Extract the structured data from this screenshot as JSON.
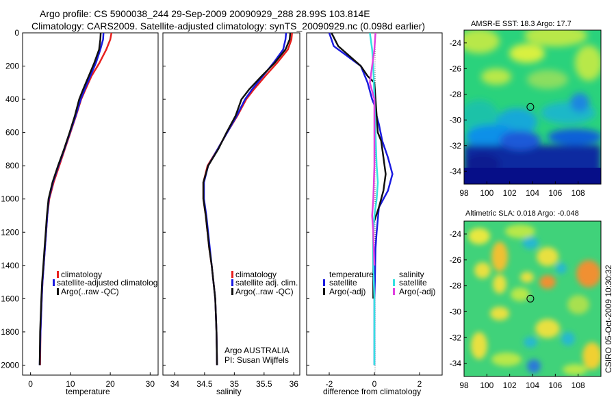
{
  "title": {
    "line1": "Argo profile: CS 5900038_244 29-Sep-2009 20090929_288 28.99S 103.814E",
    "line2": "Climatology: CARS2009. Satellite-adjusted climatology: synTS_20090929.nc (0.098d earlier)"
  },
  "panels": {
    "temperature": {
      "xlabel": "temperature",
      "legend": [
        "climatology",
        "satellite-adjusted climatology",
        "Argo(..raw -QC)"
      ]
    },
    "salinity": {
      "xlabel": "salinity",
      "legend": [
        "climatology",
        "satellite adj. clim.",
        "Argo(..raw -QC)"
      ],
      "note1": "Argo AUSTRALIA",
      "note2": "PI: Susan Wijffels"
    },
    "difference": {
      "xlabel": "difference from climatology",
      "temp_header": "temperature",
      "sal_header": "salinity",
      "temp_items": [
        "satellite",
        "Argo(-adj)"
      ],
      "sal_items": [
        "satellite",
        "Argo(-adj)"
      ]
    },
    "sst_map": {
      "title": "AMSR-E SST: 18.3 Argo: 17.7"
    },
    "sla_map": {
      "title": "Altimetric SLA: 0.018 Argo: -0.048"
    }
  },
  "side_label": "CSIRO 05-Oct-2009 10:30:32",
  "colors": {
    "climatology": "#e8201e",
    "satellite": "#1a1ae0",
    "argo": "#111111",
    "sal_sat": "#34e0e0",
    "sal_argo": "#e040e0"
  },
  "chart_data": [
    {
      "type": "line",
      "name": "temperature profile",
      "xlabel": "temperature",
      "ylabel": "",
      "xlim": [
        -2,
        32
      ],
      "ylim": [
        2060,
        0
      ],
      "y_inverted": true,
      "xticks": [
        0,
        10,
        20,
        30
      ],
      "yticks": [
        0,
        200,
        400,
        600,
        800,
        1000,
        1200,
        1400,
        1600,
        1800,
        2000
      ],
      "series": [
        {
          "name": "climatology",
          "color": "#e8201e",
          "x": [
            20.3,
            20.0,
            19.0,
            17.3,
            15.3,
            13.8,
            12.7,
            11.4,
            10.0,
            8.6,
            7.2,
            5.8,
            4.7,
            4.2,
            3.9,
            3.6,
            3.3,
            3.0,
            2.8,
            2.5,
            2.4
          ],
          "y": [
            0,
            40,
            100,
            180,
            260,
            340,
            400,
            500,
            600,
            700,
            800,
            900,
            1000,
            1100,
            1200,
            1300,
            1400,
            1500,
            1600,
            1800,
            2000
          ]
        },
        {
          "name": "satellite-adjusted climatology",
          "color": "#1a1ae0",
          "x": [
            18.3,
            18.2,
            17.5,
            16.4,
            15.0,
            13.6,
            12.6,
            11.3,
            9.9,
            8.5,
            7.0,
            5.6,
            4.6,
            4.2,
            3.9,
            3.6,
            3.3,
            3.0,
            2.8,
            2.5,
            2.3
          ],
          "y": [
            0,
            40,
            100,
            180,
            260,
            340,
            400,
            500,
            600,
            700,
            800,
            900,
            1000,
            1100,
            1200,
            1300,
            1400,
            1500,
            1600,
            1800,
            2000
          ]
        },
        {
          "name": "Argo(..raw -QC)",
          "color": "#111111",
          "x": [
            17.6,
            17.5,
            17.2,
            16.0,
            14.6,
            13.2,
            12.2,
            11.1,
            9.8,
            8.4,
            6.9,
            5.5,
            4.5,
            4.1,
            3.8,
            3.5,
            3.2,
            2.9,
            2.7,
            2.4,
            2.3
          ],
          "y": [
            0,
            40,
            100,
            180,
            260,
            340,
            400,
            500,
            600,
            700,
            800,
            900,
            1000,
            1100,
            1200,
            1300,
            1400,
            1500,
            1600,
            1800,
            2000
          ]
        }
      ]
    },
    {
      "type": "line",
      "name": "salinity profile",
      "xlabel": "salinity",
      "ylabel": "",
      "xlim": [
        33.8,
        36.1
      ],
      "ylim": [
        2060,
        0
      ],
      "y_inverted": true,
      "xticks": [
        34,
        34.5,
        35,
        35.5,
        36
      ],
      "series": [
        {
          "name": "climatology",
          "color": "#e8201e",
          "x": [
            35.97,
            35.96,
            35.9,
            35.72,
            35.52,
            35.33,
            35.2,
            35.05,
            34.88,
            34.72,
            34.55,
            34.48,
            34.48,
            34.52,
            34.55,
            34.58,
            34.62,
            34.65,
            34.68,
            34.7,
            34.71
          ],
          "y": [
            0,
            40,
            100,
            180,
            260,
            340,
            400,
            500,
            600,
            700,
            800,
            900,
            1000,
            1100,
            1200,
            1300,
            1400,
            1500,
            1600,
            1800,
            2000
          ]
        },
        {
          "name": "satellite adj. clim.",
          "color": "#1a1ae0",
          "x": [
            35.87,
            35.86,
            35.82,
            35.66,
            35.48,
            35.3,
            35.18,
            35.04,
            34.88,
            34.72,
            34.56,
            34.49,
            34.49,
            34.53,
            34.56,
            34.59,
            34.62,
            34.65,
            34.68,
            34.7,
            34.71
          ],
          "y": [
            0,
            40,
            100,
            180,
            260,
            340,
            400,
            500,
            600,
            700,
            800,
            900,
            1000,
            1100,
            1200,
            1300,
            1400,
            1500,
            1600,
            1800,
            2000
          ]
        },
        {
          "name": "Argo(..raw -QC)",
          "color": "#111111",
          "x": [
            35.94,
            35.93,
            35.86,
            35.68,
            35.46,
            35.25,
            35.12,
            35.02,
            34.87,
            34.73,
            34.56,
            34.48,
            34.48,
            34.52,
            34.55,
            34.58,
            34.62,
            34.65,
            34.68,
            34.7,
            34.71
          ],
          "y": [
            0,
            40,
            100,
            180,
            260,
            340,
            400,
            500,
            600,
            700,
            800,
            900,
            1000,
            1100,
            1200,
            1300,
            1400,
            1500,
            1600,
            1800,
            2000
          ]
        }
      ]
    },
    {
      "type": "line",
      "name": "difference from climatology",
      "xlabel": "difference from climatology",
      "ylabel": "",
      "xlim": [
        -3,
        3
      ],
      "ylim": [
        2060,
        0
      ],
      "y_inverted": true,
      "xticks": [
        -2,
        0,
        2
      ],
      "series": [
        {
          "name": "temperature satellite",
          "color": "#1a1ae0",
          "x": [
            -2.0,
            -1.8,
            -0.6,
            -0.3,
            -0.1,
            0.05,
            0.1,
            0.2,
            0.35,
            0.6,
            0.8,
            0.6,
            0.2,
            0.1,
            0.05,
            0.02,
            0.0,
            0.0,
            0.0,
            0.0
          ],
          "y": [
            0,
            80,
            200,
            300,
            400,
            450,
            500,
            550,
            650,
            750,
            850,
            950,
            1050,
            1200,
            1300,
            1500,
            1600,
            1700,
            1800,
            2000
          ]
        },
        {
          "name": "temperature Argo(-adj)",
          "color": "#111111",
          "x": [
            -1.9,
            -1.6,
            -0.6,
            -0.3,
            0.0,
            0.15,
            0.3,
            0.4,
            0.5,
            0.4,
            0.2,
            -0.05,
            -0.05,
            -0.05,
            -0.05
          ],
          "y": [
            0,
            80,
            200,
            260,
            300,
            600,
            650,
            750,
            850,
            950,
            1050,
            1150,
            1300,
            1500,
            1600
          ]
        },
        {
          "name": "salinity satellite",
          "color": "#34e0e0",
          "x": [
            -0.2,
            -0.1,
            -0.05,
            0.0,
            0.05,
            0.1,
            0.15,
            0.1,
            0.0,
            -0.05,
            -0.05,
            0.0,
            0.0,
            0.0
          ],
          "y": [
            0,
            100,
            200,
            400,
            600,
            800,
            900,
            1000,
            1100,
            1200,
            1400,
            1600,
            1800,
            2000
          ]
        },
        {
          "name": "salinity Argo(-adj)",
          "color": "#e040e0",
          "x": [
            0.05,
            0.0,
            -0.1,
            -0.2,
            -0.1,
            0.0,
            0.0,
            -0.05,
            -0.1,
            -0.05,
            0.0
          ],
          "y": [
            0,
            100,
            200,
            300,
            350,
            400,
            800,
            1000,
            1100,
            1200,
            1400
          ]
        }
      ]
    },
    {
      "type": "heatmap",
      "name": "AMSR-E SST map",
      "title": "AMSR-E SST: 18.3 Argo: 17.7",
      "xlim": [
        98,
        110
      ],
      "ylim": [
        -35,
        -23
      ],
      "xticks": [
        98,
        100,
        102,
        104,
        106,
        108
      ],
      "yticks": [
        -24,
        -26,
        -28,
        -30,
        -32,
        -34
      ],
      "marker": {
        "lon": 103.814,
        "lat": -28.99
      }
    },
    {
      "type": "heatmap",
      "name": "Altimetric SLA map",
      "title": "Altimetric SLA: 0.018 Argo: -0.048",
      "xlim": [
        98,
        110
      ],
      "ylim": [
        -35,
        -23
      ],
      "xticks": [
        98,
        100,
        102,
        104,
        106,
        108
      ],
      "yticks": [
        -24,
        -26,
        -28,
        -30,
        -32,
        -34
      ],
      "marker": {
        "lon": 103.814,
        "lat": -28.99
      }
    }
  ]
}
